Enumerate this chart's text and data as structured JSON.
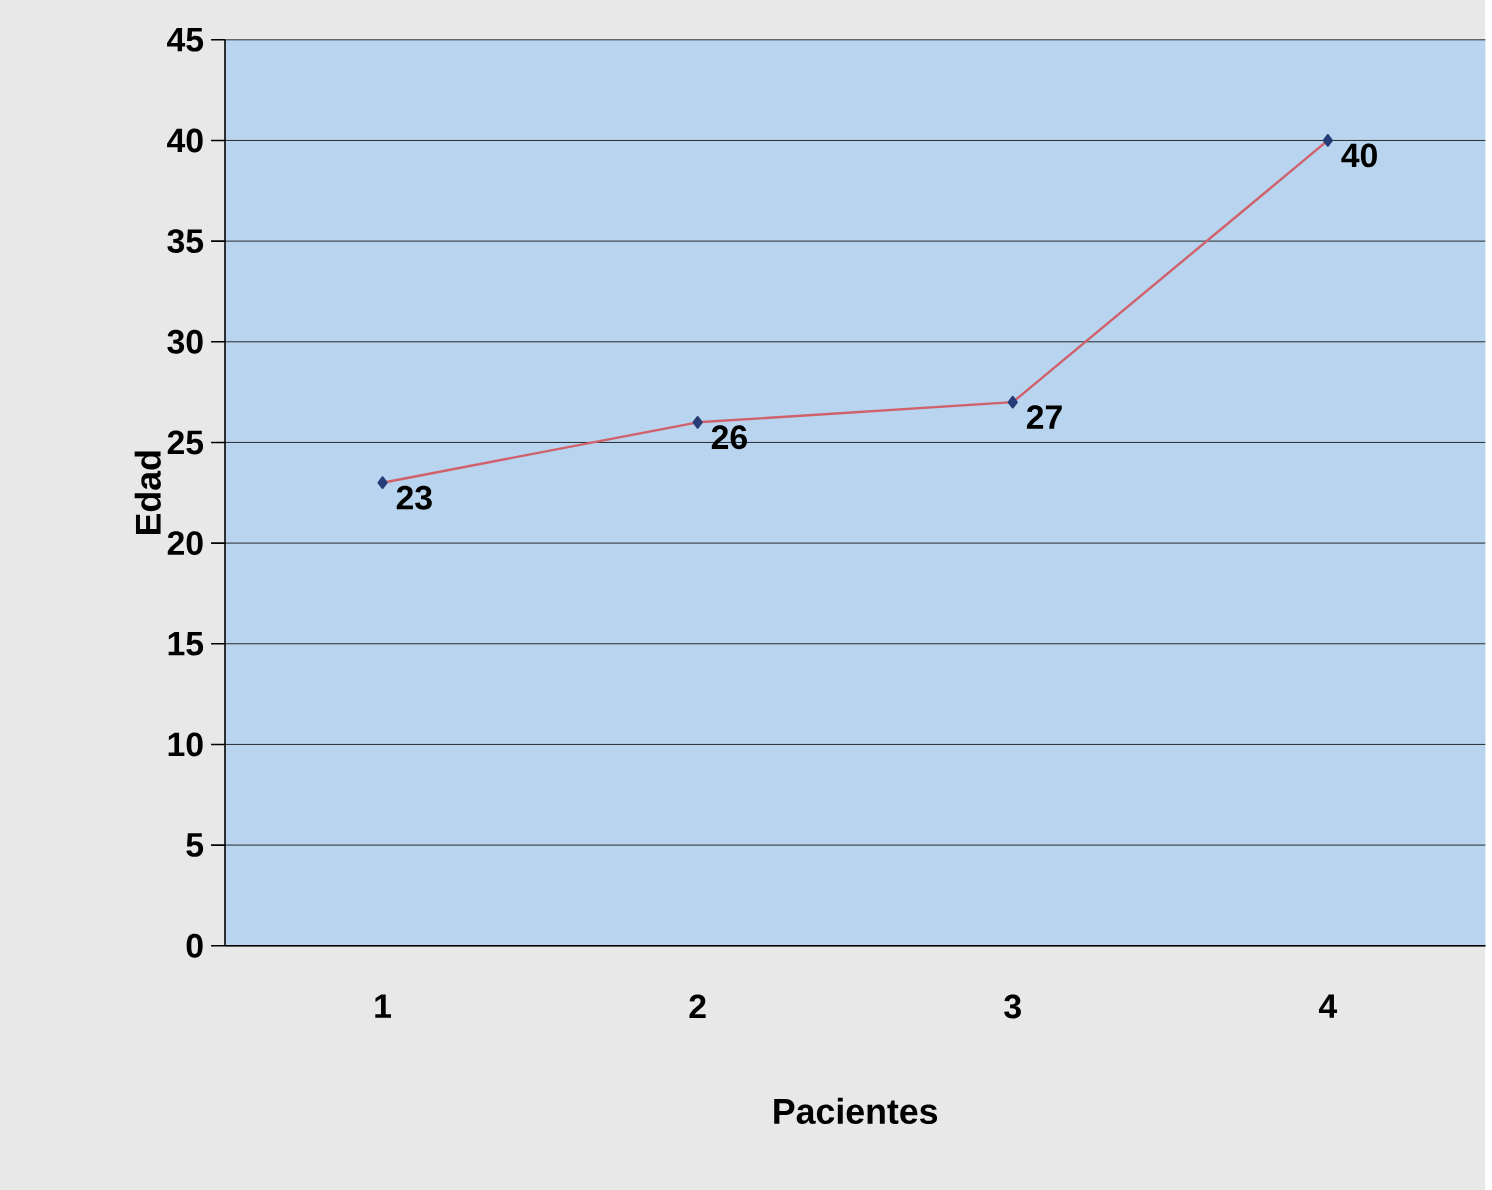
{
  "chart_data": {
    "type": "line",
    "xlabel": "Pacientes",
    "ylabel": "Edad",
    "categories": [
      "1",
      "2",
      "3",
      "4"
    ],
    "series": [
      {
        "color": "#d0606a",
        "values": [
          23,
          26,
          27,
          40
        ]
      }
    ],
    "ylim": [
      0,
      45
    ],
    "yticks": [
      0,
      5,
      10,
      15,
      20,
      25,
      30,
      35,
      40,
      45
    ],
    "grid": "y",
    "marker": "diamond",
    "data_labels": true
  }
}
